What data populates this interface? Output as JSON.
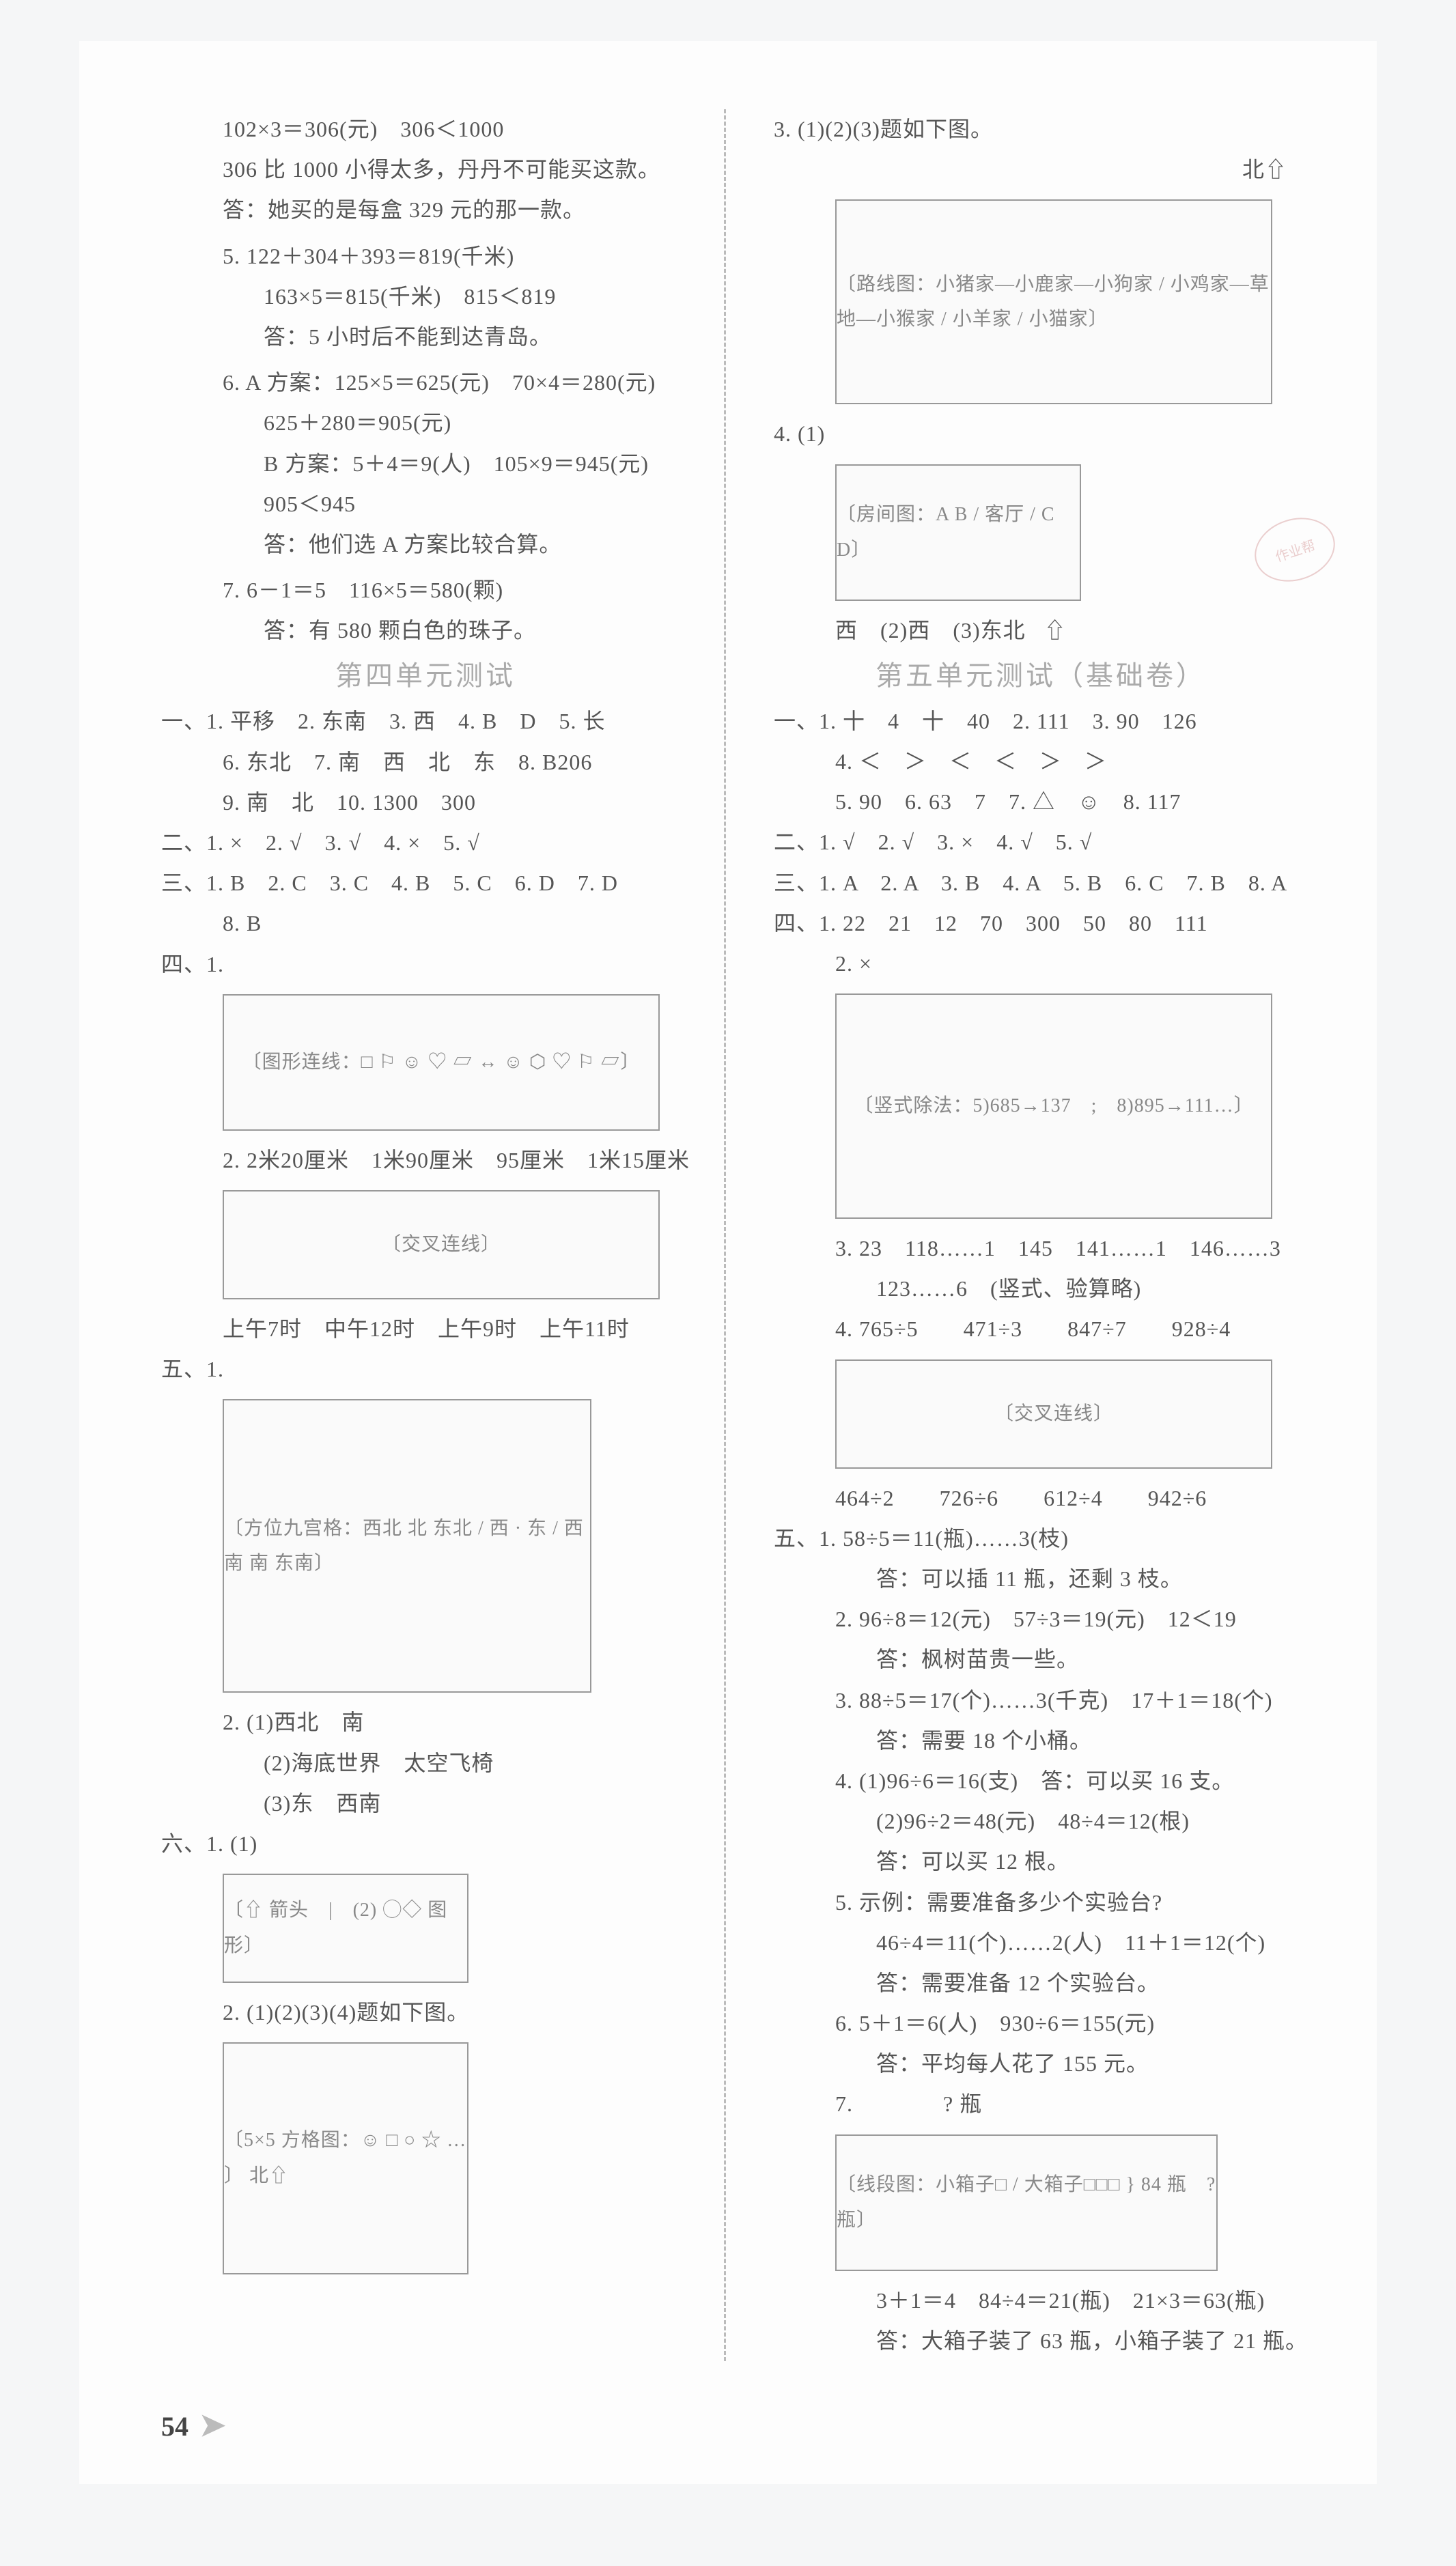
{
  "left": {
    "prob4_cont": [
      "102×3＝306(元)　306＜1000",
      "306 比 1000 小得太多，丹丹不可能买这款。",
      "答：她买的是每盒 329 元的那一款。"
    ],
    "p5": [
      "5. 122＋304＋393＝819(千米)",
      "163×5＝815(千米)　815＜819",
      "答：5 小时后不能到达青岛。"
    ],
    "p6": [
      "6. A 方案：125×5＝625(元)　70×4＝280(元)",
      "625＋280＝905(元)",
      "B 方案：5＋4＝9(人)　105×9＝945(元)",
      "905＜945",
      "答：他们选 A 方案比较合算。"
    ],
    "p7": [
      "7. 6－1＝5　116×5＝580(颗)",
      "答：有 580 颗白色的珠子。"
    ],
    "unit4_title": "第四单元测试",
    "s1": [
      "一、1. 平移　2. 东南　3. 西　4. B　D　5. 长",
      "6. 东北　7. 南　西　北　东　8. B206",
      "9. 南　北　10. 1300　300"
    ],
    "s2": "二、1. ×　2. √　3. √　4. ×　5. √",
    "s3": [
      "三、1. B　2. C　3. C　4. B　5. C　6. D　7. D",
      "8. B"
    ],
    "s4_label": "四、1.",
    "s4_dia1": "〔图形连线：□ ⚐ ☺ ♡ ▱ ↔ ☺ ⬡ ♡ ⚐ ▱〕",
    "s4_2_head": "2. 2米20厘米　1米90厘米　95厘米　1米15厘米",
    "s4_dia2": "〔交叉连线〕",
    "s4_2_foot": "上午7时　中午12时　上午9时　上午11时",
    "s5_label": "五、1.",
    "s5_dia": "〔方位九宫格：西北 北 东北 / 西 · 东 / 西南 南 东南〕",
    "s5_2": [
      "2. (1)西北　南",
      "(2)海底世界　太空飞椅",
      "(3)东　西南"
    ],
    "s6_label": "六、1. (1)",
    "s6_dia1": "〔⇧ 箭头　|　(2) ◯◇ 图形〕",
    "s6_2_head": "2. (1)(2)(3)(4)题如下图。",
    "s6_dia2": "〔5×5 方格图：☺ □ ○ ☆ … 〕  北⇧"
  },
  "right": {
    "p3_head": "3. (1)(2)(3)题如下图。",
    "p3_north": "北⇧",
    "dia3": "〔路线图：小猪家—小鹿家—小狗家 / 小鸡家—草地—小猴家 / 小羊家 / 小猫家〕",
    "p4_head": "4. (1)",
    "dia4": "〔房间图：A B / 客厅 / C D〕",
    "p4_tail": "西　(2)西　(3)东北   ⇧",
    "unit5_title": "第五单元测试（基础卷）",
    "u5_s1": [
      "一、1. 十　4　十　40　2. 111　3. 90　126",
      "4. ＜　＞　＜　＜　＞　＞",
      "5. 90　6. 63　7　7. △　☺　8. 117"
    ],
    "u5_s2": "二、1. √　2. √　3. ×　4. √　5. √",
    "u5_s3": "三、1. A　2. A　3. B　4. A　5. B　6. C　7. B　8. A",
    "u5_s4_1": "四、1. 22　21　12　70　300　50　80　111",
    "u5_s4_2_label": "2. ×",
    "u5_s4_2_dia": "〔竖式除法：5)685→137　;　8)895→111…〕",
    "u5_s4_3": [
      "3. 23　118……1　145　141……1　146……3",
      "123……6　(竖式、验算略)"
    ],
    "u5_s4_4_head": "4. 765÷5　　471÷3　　847÷7　　928÷4",
    "u5_s4_4_dia": "〔交叉连线〕",
    "u5_s4_4_foot": "464÷2　　726÷6　　612÷4　　942÷6",
    "u5_s5": [
      "五、1. 58÷5＝11(瓶)……3(枝)",
      "答：可以插 11 瓶，还剩 3 枝。",
      "2. 96÷8＝12(元)　57÷3＝19(元)　12＜19",
      "答：枫树苗贵一些。",
      "3. 88÷5＝17(个)……3(千克)　17＋1＝18(个)",
      "答：需要 18 个小桶。",
      "4. (1)96÷6＝16(支)　答：可以买 16 支。",
      "(2)96÷2＝48(元)　48÷4＝12(根)",
      "答：可以买 12 根。",
      "5. 示例：需要准备多少个实验台?",
      "46÷4＝11(个)……2(人)　11＋1＝12(个)",
      "答：需要准备 12 个实验台。",
      "6. 5＋1＝6(人)　930÷6＝155(元)",
      "答：平均每人花了 155 元。"
    ],
    "u5_s5_7_head": "7.　　　　? 瓶",
    "u5_s5_7_dia": "〔线段图：小箱子□ / 大箱子□□□ } 84 瓶　? 瓶〕",
    "u5_s5_7_tail": [
      "3＋1＝4　84÷4＝21(瓶)　21×3＝63(瓶)",
      "答：大箱子装了 63 瓶，小箱子装了 21 瓶。"
    ]
  },
  "page_number": "54",
  "stamp": "作业帮"
}
